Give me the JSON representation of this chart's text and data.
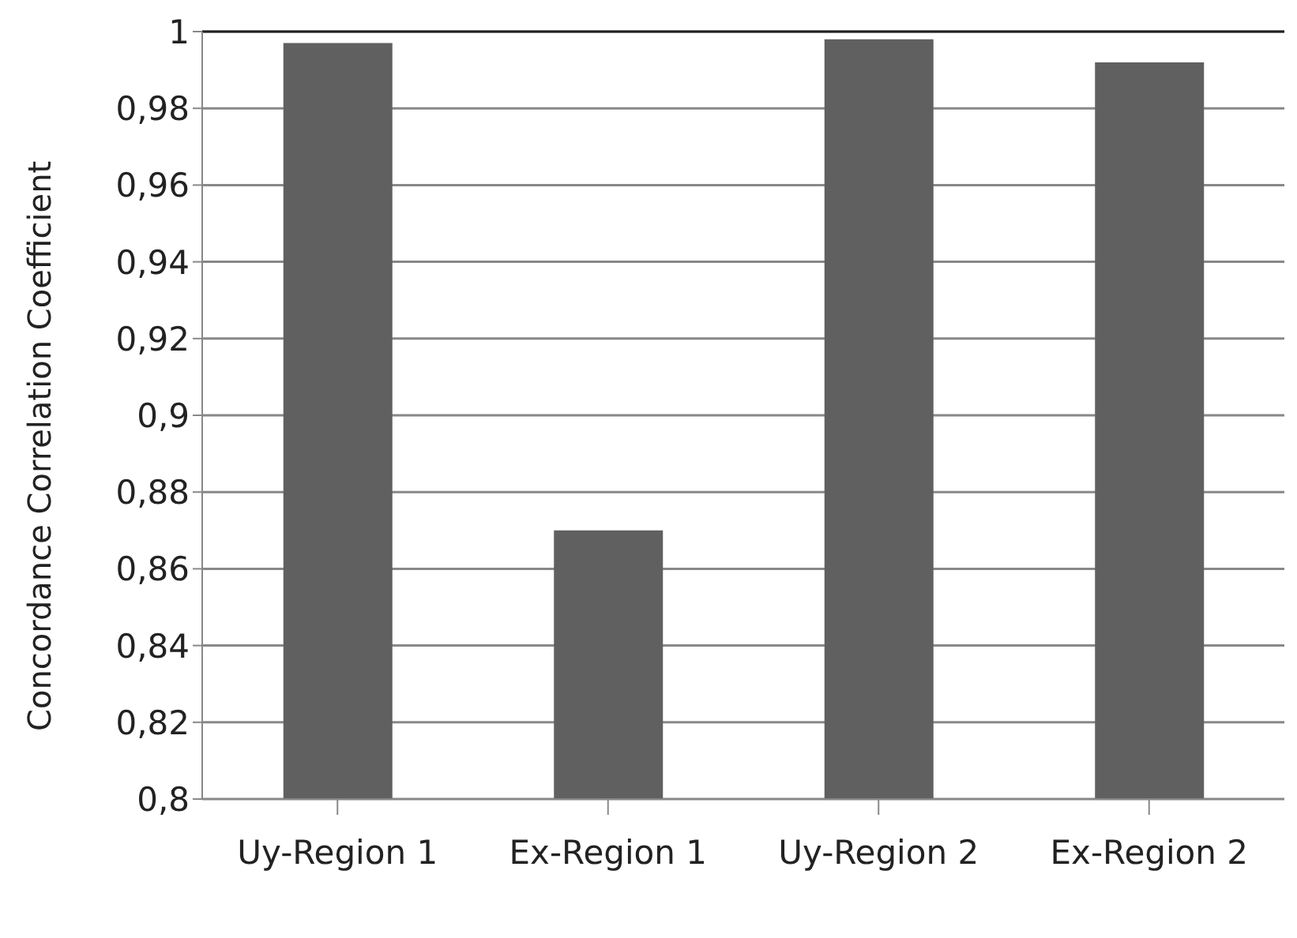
{
  "chart_data": {
    "type": "bar",
    "ylabel": "Concordance Correlation Coefficient",
    "categories": [
      "Uy-Region 1",
      "Ex-Region 1",
      "Uy-Region 2",
      "Ex-Region 2"
    ],
    "values": [
      0.997,
      0.87,
      0.998,
      0.992
    ],
    "color": "#606060",
    "ylim": [
      0.8,
      1
    ],
    "yticks": [
      {
        "value": 0.8,
        "label": "0,8"
      },
      {
        "value": 0.82,
        "label": "0,82"
      },
      {
        "value": 0.84,
        "label": "0,84"
      },
      {
        "value": 0.86,
        "label": "0,86"
      },
      {
        "value": 0.88,
        "label": "0,88"
      },
      {
        "value": 0.9,
        "label": "0,9"
      },
      {
        "value": 0.92,
        "label": "0,92"
      },
      {
        "value": 0.94,
        "label": "0,94"
      },
      {
        "value": 0.96,
        "label": "0,96"
      },
      {
        "value": 0.98,
        "label": "0,98"
      },
      {
        "value": 1,
        "label": "1"
      }
    ],
    "grid": "y"
  }
}
